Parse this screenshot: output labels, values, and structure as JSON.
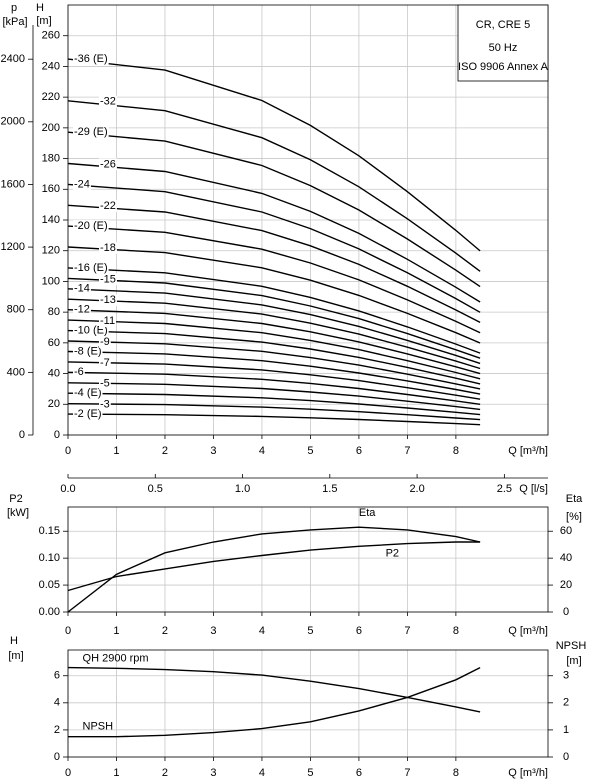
{
  "chart_data": [
    {
      "type": "line",
      "title": "CR, CRE 5",
      "subtitle": "50 Hz",
      "note": "ISO 9906 Annex A",
      "xlabel": "Q [m³/h]",
      "ylabel": "H",
      "yunit": "[m]",
      "y2label": "p",
      "y2unit": "[kPa]",
      "x2label": "Q [l/s]",
      "xlim": [
        0,
        9.9
      ],
      "xticks": [
        0,
        1,
        2,
        3,
        4,
        5,
        6,
        7,
        8
      ],
      "x2lim": [
        0,
        2.75
      ],
      "x2ticks": [
        {
          "value": 0,
          "label": "0.0"
        },
        0.5,
        {
          "value": 1,
          "label": "1.0"
        },
        1.5,
        {
          "value": 2,
          "label": "2.0"
        },
        2.5
      ],
      "ylim": [
        0,
        280
      ],
      "yticks": [
        0,
        20,
        40,
        60,
        80,
        100,
        120,
        140,
        160,
        180,
        200,
        220,
        240,
        260
      ],
      "y2lim": [
        0,
        2746
      ],
      "y2ticks": [
        0,
        400,
        800,
        1200,
        1600,
        2000,
        2400
      ],
      "grid": true,
      "color": "#000000",
      "x": [
        0,
        2,
        4,
        5,
        6,
        7,
        8,
        8.5
      ],
      "series": [
        {
          "name": "-2 (E)",
          "values": [
            13.6,
            13.2,
            12.1,
            11.2,
            10.1,
            8.8,
            7.4,
            6.7
          ]
        },
        {
          "name": "-3",
          "values": [
            20.4,
            19.8,
            18.2,
            16.8,
            15.2,
            13.2,
            11.1,
            10.0
          ]
        },
        {
          "name": "-4 (E)",
          "values": [
            27.2,
            26.4,
            24.2,
            22.4,
            20.2,
            17.6,
            14.8,
            13.3
          ]
        },
        {
          "name": "-5",
          "values": [
            34,
            33,
            30.3,
            28,
            25.3,
            22,
            18.5,
            16.7
          ]
        },
        {
          "name": "-6",
          "values": [
            40.8,
            39.6,
            36.3,
            33.6,
            30.3,
            26.4,
            22.2,
            20
          ]
        },
        {
          "name": "-7",
          "values": [
            47.6,
            46.2,
            42.4,
            39.2,
            35.4,
            30.8,
            25.9,
            23.3
          ]
        },
        {
          "name": "-8 (E)",
          "values": [
            54.4,
            52.8,
            48.4,
            44.8,
            40.4,
            35.2,
            29.6,
            26.6
          ]
        },
        {
          "name": "-9",
          "values": [
            61.2,
            59.4,
            54.5,
            50.4,
            45.5,
            39.6,
            33.3,
            30
          ]
        },
        {
          "name": "-10 (E)",
          "values": [
            68,
            66,
            60.5,
            56,
            50.5,
            44,
            37,
            33.3
          ]
        },
        {
          "name": "-11",
          "values": [
            74.8,
            72.6,
            66.6,
            61.6,
            55.6,
            48.4,
            40.7,
            36.6
          ]
        },
        {
          "name": "-12",
          "values": [
            81.6,
            79.2,
            72.6,
            67.2,
            60.6,
            52.8,
            44.4,
            40
          ]
        },
        {
          "name": "-13",
          "values": [
            88.4,
            85.8,
            78.7,
            72.8,
            65.7,
            57.2,
            48.1,
            43.3
          ]
        },
        {
          "name": "-14",
          "values": [
            95.2,
            92.4,
            84.7,
            78.4,
            70.7,
            61.6,
            51.8,
            46.6
          ]
        },
        {
          "name": "-15",
          "values": [
            102,
            99,
            90.8,
            84,
            75.8,
            66,
            55.5,
            50
          ]
        },
        {
          "name": "-16 (E)",
          "values": [
            108.8,
            105.6,
            96.8,
            89.6,
            80.8,
            70.4,
            59.2,
            53.3
          ]
        },
        {
          "name": "-18",
          "values": [
            122.4,
            118.8,
            108.9,
            100.8,
            90.9,
            79.2,
            66.6,
            59.9
          ]
        },
        {
          "name": "-20 (E)",
          "values": [
            136,
            132,
            121,
            112,
            101,
            88,
            74,
            66.6
          ]
        },
        {
          "name": "-22",
          "values": [
            149.6,
            145.2,
            133.1,
            123.2,
            111.1,
            96.8,
            81.4,
            73.3
          ]
        },
        {
          "name": "-24",
          "values": [
            163.2,
            158.4,
            145.2,
            134.4,
            121.2,
            105.6,
            88.8,
            79.9
          ]
        },
        {
          "name": "-26",
          "values": [
            176.8,
            171.6,
            157.3,
            145.6,
            131.3,
            114.4,
            96.2,
            86.6
          ]
        },
        {
          "name": "-29 (E)",
          "values": [
            197.2,
            191.4,
            175.5,
            162.4,
            146.5,
            127.6,
            107.3,
            96.6
          ]
        },
        {
          "name": "-32",
          "values": [
            217.6,
            211.2,
            193.6,
            179.2,
            161.6,
            140.8,
            118.4,
            106.6
          ]
        },
        {
          "name": "-36 (E)",
          "values": [
            244.8,
            237.6,
            217.8,
            201.6,
            181.8,
            158.4,
            133.2,
            119.9
          ]
        }
      ]
    },
    {
      "type": "line",
      "xlabel": "Q [m³/h]",
      "ylabel": "P2",
      "yunit": "[kW]",
      "y2label": "Eta",
      "y2unit": "[%]",
      "xlim": [
        0,
        9.9
      ],
      "xticks": [
        0,
        1,
        2,
        3,
        4,
        5,
        6,
        7,
        8
      ],
      "ylim": [
        0,
        0.195
      ],
      "yticks": [
        {
          "value": 0,
          "label": "0.00"
        },
        0.05,
        {
          "value": 0.1,
          "label": "0.10"
        },
        0.15
      ],
      "y2lim": [
        0,
        78
      ],
      "y2ticks": [
        0,
        20,
        40,
        60
      ],
      "grid": true,
      "color": "#000000",
      "x": [
        0,
        1,
        2,
        3,
        4,
        5,
        6,
        7,
        8,
        8.5
      ],
      "series": [
        {
          "name": "P2",
          "axis": "y",
          "values": [
            0.04,
            0.066,
            0.08,
            0.094,
            0.105,
            0.115,
            0.122,
            0.127,
            0.13,
            0.13
          ]
        },
        {
          "name": "Eta",
          "axis": "y2",
          "values": [
            0,
            28,
            44,
            52,
            58,
            61,
            63,
            61,
            56,
            52
          ]
        }
      ]
    },
    {
      "type": "line",
      "xlabel": "Q [m³/h]",
      "ylabel": "H",
      "yunit": "[m]",
      "y2label": "NPSH",
      "y2unit": "[m]",
      "xlim": [
        0,
        9.9
      ],
      "xticks": [
        0,
        1,
        2,
        3,
        4,
        5,
        6,
        7,
        8
      ],
      "ylim": [
        0,
        7.9
      ],
      "yticks": [
        0,
        2,
        4,
        6
      ],
      "y2lim": [
        0,
        3.95
      ],
      "y2ticks": [
        0,
        1,
        2,
        3
      ],
      "grid": true,
      "color": "#000000",
      "x": [
        0,
        1,
        2,
        3,
        4,
        5,
        6,
        7,
        8,
        8.5
      ],
      "series": [
        {
          "name": "QH 2900 rpm",
          "axis": "y",
          "values": [
            6.6,
            6.55,
            6.45,
            6.3,
            6.05,
            5.6,
            5.05,
            4.4,
            3.7,
            3.33
          ]
        },
        {
          "name": "NPSH",
          "axis": "y2",
          "values": [
            0.75,
            0.75,
            0.8,
            0.9,
            1.05,
            1.3,
            1.7,
            2.2,
            2.85,
            3.3
          ]
        }
      ]
    }
  ]
}
